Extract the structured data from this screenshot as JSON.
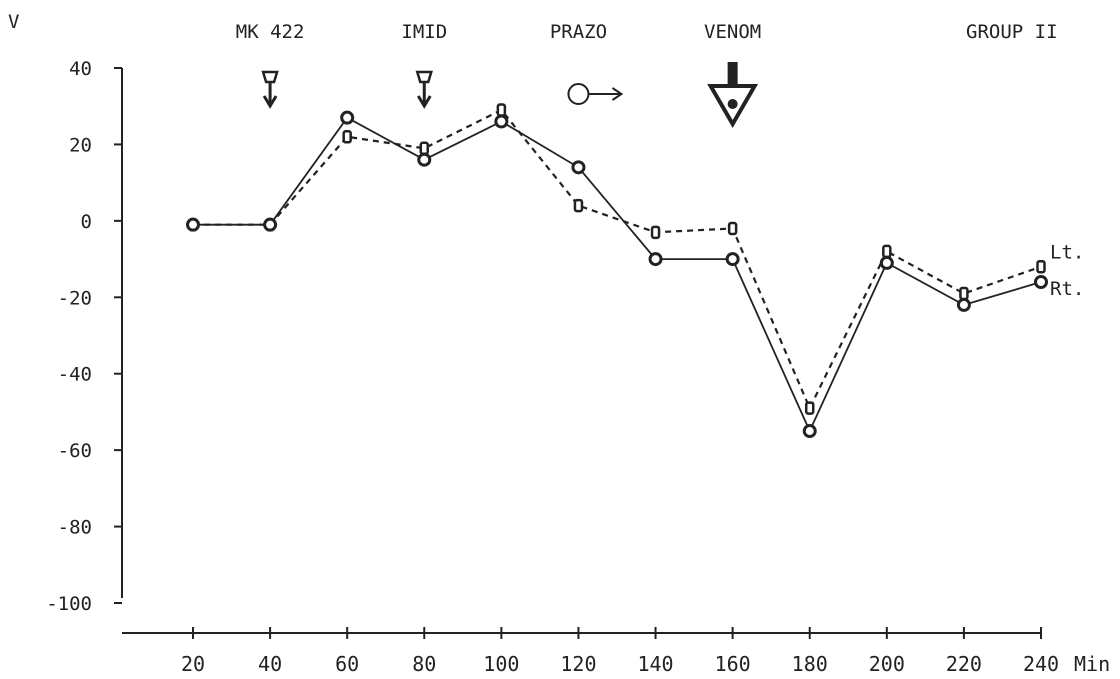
{
  "chart_data": {
    "type": "line",
    "title": "",
    "ylabel": "V",
    "xlabel": "Min",
    "ylim": [
      -100,
      40
    ],
    "xlim": [
      20,
      240
    ],
    "yticks": [
      40,
      20,
      0,
      -20,
      -40,
      -60,
      -80,
      -100
    ],
    "ytick_labels": [
      "40",
      "20",
      "0",
      "-20",
      "-40",
      "-60",
      "-80",
      "-100"
    ],
    "xticks": [
      20,
      40,
      60,
      80,
      100,
      120,
      140,
      160,
      180,
      200,
      220,
      240
    ],
    "xtick_labels": [
      "20",
      "40",
      "60",
      "80",
      "100",
      "120",
      "140",
      "160",
      "180",
      "200",
      "220",
      "240"
    ],
    "x": [
      20,
      40,
      60,
      80,
      100,
      120,
      140,
      160,
      180,
      200,
      220,
      240
    ],
    "series": [
      {
        "name": "Rt.",
        "style": "solid-circles",
        "values": [
          -1,
          -1,
          27,
          16,
          26,
          14,
          -10,
          -10,
          -55,
          -11,
          -22,
          -16
        ]
      },
      {
        "name": "Lt.",
        "style": "dashed-squares",
        "values": [
          -1,
          -1,
          22,
          19,
          29,
          4,
          -3,
          -2,
          -49,
          -8,
          -19,
          -12
        ]
      }
    ],
    "annotations": [
      {
        "text": "MK 422",
        "x": 40,
        "marker": "arrow-down"
      },
      {
        "text": "IMID",
        "x": 80,
        "marker": "arrow-down"
      },
      {
        "text": "PRAZO",
        "x": 120,
        "marker": "circle-arrow"
      },
      {
        "text": "VENOM",
        "x": 160,
        "marker": "big-arrow-down"
      }
    ],
    "group_label": "GROUP II",
    "grid": false,
    "legend": "inline-right"
  }
}
